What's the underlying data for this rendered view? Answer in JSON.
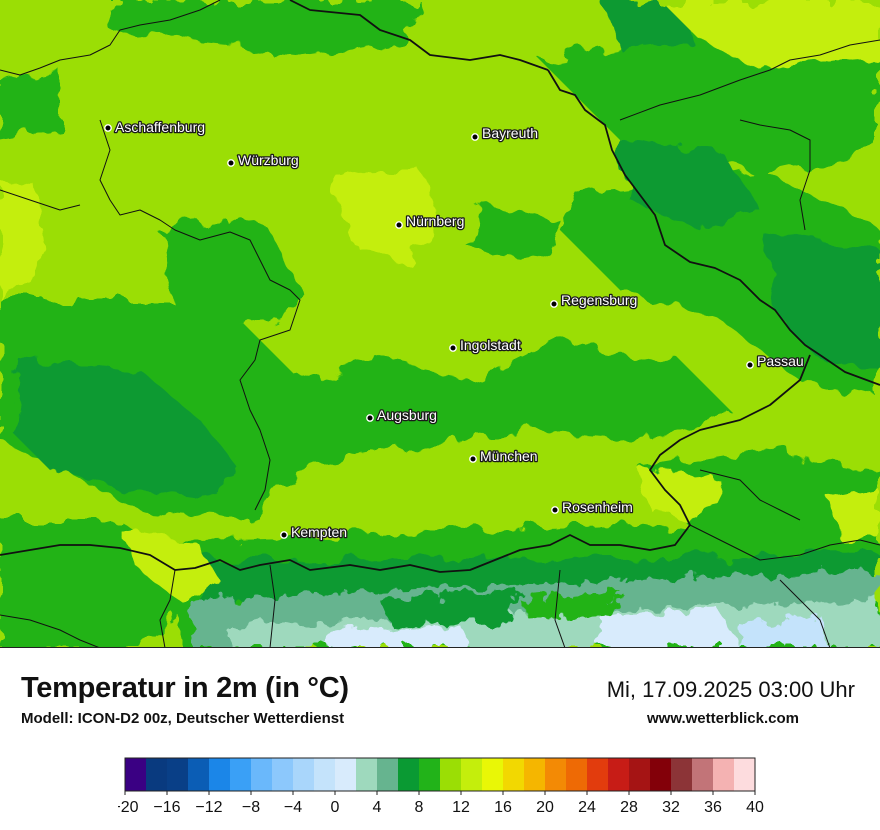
{
  "map": {
    "cities": [
      {
        "name": "Aschaffenburg"
      },
      {
        "name": "Würzburg"
      },
      {
        "name": "Bayreuth"
      },
      {
        "name": "Nürnberg"
      },
      {
        "name": "Regensburg"
      },
      {
        "name": "Ingolstadt"
      },
      {
        "name": "Passau"
      },
      {
        "name": "Augsburg"
      },
      {
        "name": "München"
      },
      {
        "name": "Rosenheim"
      },
      {
        "name": "Kempten"
      }
    ]
  },
  "footer": {
    "title": "Temperatur in 2m (in °C)",
    "model": "Modell: ICON-D2 00z, Deutscher Wetterdienst",
    "datetime": "Mi, 17.09.2025 03:00 Uhr",
    "website": "www.wetterblick.com"
  },
  "legend": {
    "tick_labels": [
      "−20",
      "−16",
      "−12",
      "−8",
      "−4",
      "0",
      "4",
      "8",
      "12",
      "16",
      "20",
      "24",
      "28",
      "32",
      "36",
      "40"
    ],
    "colors": [
      "#3a0083",
      "#093a7f",
      "#093f87",
      "#0b5db5",
      "#1b86e8",
      "#3aa0f6",
      "#6ab8fb",
      "#8cc8fc",
      "#a9d6fb",
      "#c4e3fb",
      "#d8ebfc",
      "#9ed9bd",
      "#66b48f",
      "#0a9a33",
      "#22b319",
      "#9bde05",
      "#c4ee0c",
      "#e9f706",
      "#f2d801",
      "#f5b600",
      "#f38a05",
      "#ee6a05",
      "#e23c0d",
      "#c71c16",
      "#a51414",
      "#830009",
      "#8c3437",
      "#c27478",
      "#f4b2b2",
      "#fddcde"
    ]
  }
}
